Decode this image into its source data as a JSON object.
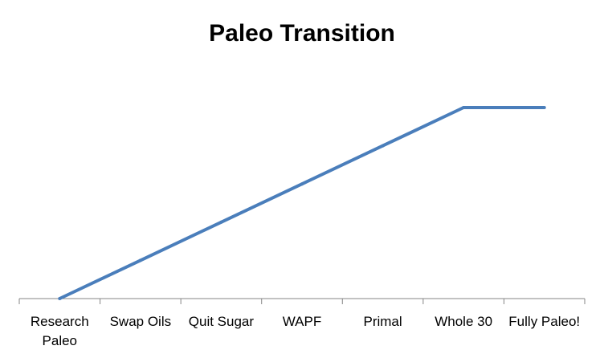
{
  "chart_data": {
    "type": "line",
    "title": "Paleo Transition",
    "xlabel": "",
    "ylabel": "",
    "categories": [
      [
        "Research",
        "Paleo"
      ],
      [
        "Swap Oils"
      ],
      [
        "Quit Sugar"
      ],
      [
        "WAPF"
      ],
      [
        "Primal"
      ],
      [
        "Whole 30"
      ],
      [
        "Fully Paleo!"
      ]
    ],
    "series": [
      {
        "values": [
          0,
          1,
          2,
          3,
          4,
          5,
          5
        ],
        "color": "#4a7ebb"
      }
    ],
    "ylim": [
      0,
      5
    ],
    "y_axis_visible": false,
    "grid": false,
    "legend": "none"
  }
}
